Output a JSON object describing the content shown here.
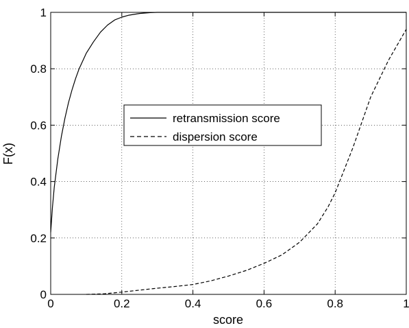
{
  "chart_data": {
    "type": "line",
    "xlabel": "score",
    "ylabel": "F(x)",
    "xlim": [
      0,
      1
    ],
    "ylim": [
      0,
      1
    ],
    "xticks": [
      "0",
      "0.2",
      "0.4",
      "0.6",
      "0.8",
      "1"
    ],
    "yticks": [
      "0",
      "0.2",
      "0.4",
      "0.6",
      "0.8",
      "1"
    ],
    "grid": true,
    "legend_position": "center",
    "series": [
      {
        "name": "retransmission score",
        "style": "solid",
        "color": "#000000",
        "x": [
          0,
          0.005,
          0.01,
          0.02,
          0.03,
          0.04,
          0.05,
          0.06,
          0.07,
          0.08,
          0.1,
          0.12,
          0.14,
          0.16,
          0.18,
          0.2,
          0.22,
          0.25,
          0.28,
          0.3,
          0.35,
          0.4,
          0.5,
          0.6,
          0.7,
          0.8,
          0.9,
          1.0
        ],
        "y": [
          0.22,
          0.31,
          0.38,
          0.48,
          0.56,
          0.625,
          0.68,
          0.725,
          0.765,
          0.8,
          0.855,
          0.895,
          0.93,
          0.955,
          0.973,
          0.983,
          0.99,
          0.996,
          0.999,
          1.0,
          1.0,
          1.0,
          1.0,
          1.0,
          1.0,
          1.0,
          1.0,
          1.0
        ]
      },
      {
        "name": "dispersion score",
        "style": "dashed",
        "color": "#000000",
        "x": [
          0.1,
          0.15,
          0.2,
          0.25,
          0.3,
          0.35,
          0.4,
          0.45,
          0.5,
          0.55,
          0.6,
          0.65,
          0.7,
          0.75,
          0.78,
          0.8,
          0.85,
          0.9,
          0.95,
          1.0
        ],
        "y": [
          0.0,
          0.002,
          0.008,
          0.015,
          0.022,
          0.028,
          0.035,
          0.048,
          0.065,
          0.085,
          0.11,
          0.14,
          0.185,
          0.25,
          0.31,
          0.36,
          0.52,
          0.7,
          0.83,
          0.94
        ]
      }
    ]
  }
}
